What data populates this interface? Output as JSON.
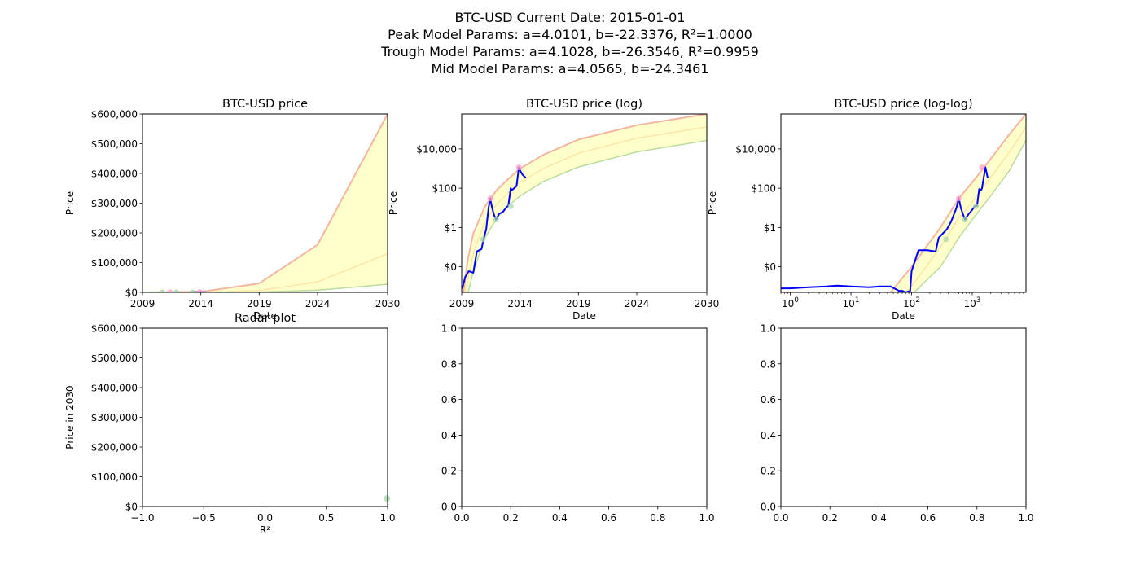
{
  "figure": {
    "suptitle": [
      "BTC-USD Current Date: 2015-01-01",
      "Peak Model Params: a=4.0101, b=-22.3376, R²=1.0000",
      "Trough Model Params: a=4.1028, b=-26.3546, R²=0.9959",
      "Mid Model Params: a=4.0565, b=-24.3461"
    ]
  },
  "colors": {
    "price_line": "#0000ff",
    "band_fill": "#ffffcc",
    "peak_line": "#f4b6a0",
    "trough_line": "#b9dd9b",
    "mid_line": "#fbe6a8",
    "peak_marker": "#ff9ec8",
    "trough_marker": "#a8d8a8"
  },
  "chart_data": [
    {
      "type": "line",
      "title": "BTC-USD price",
      "xlabel": "Date",
      "ylabel": "Price",
      "xscale": "linear",
      "yscale": "linear",
      "xlim": [
        2009,
        2030
      ],
      "ylim": [
        0,
        600000
      ],
      "xticks": [
        2009,
        2014,
        2019,
        2024,
        2030
      ],
      "xticklabels": [
        "2009",
        "2014",
        "2019",
        "2024",
        "2030"
      ],
      "yticks": [
        0,
        100000,
        200000,
        300000,
        400000,
        500000,
        600000
      ],
      "yticklabels": [
        "$0",
        "$100,000",
        "$200,000",
        "$300,000",
        "$400,000",
        "$500,000",
        "$600,000"
      ],
      "series": [
        {
          "role": "price",
          "x": [
            2009.0,
            2010.5,
            2011.4,
            2012.0,
            2013.0,
            2013.9,
            2014.5
          ],
          "y": [
            0,
            0.07,
            30,
            5,
            13,
            1150,
            330
          ]
        },
        {
          "role": "peak",
          "x": [
            2009,
            2014,
            2019,
            2024,
            2030
          ],
          "y": [
            0,
            2000,
            30000,
            160000,
            600000
          ]
        },
        {
          "role": "mid",
          "x": [
            2009,
            2014,
            2019,
            2024,
            2030
          ],
          "y": [
            0,
            400,
            6000,
            35000,
            130000
          ]
        },
        {
          "role": "trough",
          "x": [
            2009,
            2014,
            2019,
            2024,
            2030
          ],
          "y": [
            0,
            80,
            1200,
            7000,
            27000
          ]
        }
      ],
      "peaks": [
        {
          "x": 2011.4,
          "y": 30
        },
        {
          "x": 2013.9,
          "y": 1150
        }
      ],
      "troughs": [
        {
          "x": 2010.7,
          "y": 0.3
        },
        {
          "x": 2011.9,
          "y": 2.5
        },
        {
          "x": 2013.3,
          "y": 13
        }
      ]
    },
    {
      "type": "line",
      "title": "BTC-USD price (log)",
      "xlabel": "Date",
      "ylabel": "Price",
      "xscale": "linear",
      "yscale": "log",
      "xlim": [
        2009,
        2030
      ],
      "ylim": [
        0.0005,
        600000
      ],
      "xticks": [
        2009,
        2014,
        2019,
        2024,
        2030
      ],
      "xticklabels": [
        "2009",
        "2014",
        "2019",
        "2024",
        "2030"
      ],
      "yticks": [
        0.01,
        1,
        100,
        10000
      ],
      "yticklabels": [
        "$0",
        "$1",
        "$100",
        "$10,000"
      ],
      "series": [
        {
          "role": "price",
          "x": [
            2009.0,
            2009.1,
            2009.3,
            2009.6,
            2010.0,
            2010.3,
            2010.5,
            2010.7,
            2010.9,
            2011.1,
            2011.3,
            2011.45,
            2011.6,
            2011.8,
            2011.95,
            2012.2,
            2012.5,
            2012.8,
            2013.0,
            2013.2,
            2013.3,
            2013.5,
            2013.7,
            2013.9,
            2014.0,
            2014.2,
            2014.5
          ],
          "y": [
            0.0008,
            0.001,
            0.003,
            0.006,
            0.005,
            0.06,
            0.07,
            0.08,
            0.3,
            0.8,
            10,
            30,
            10,
            4,
            2.5,
            5,
            6,
            10,
            13,
            100,
            80,
            100,
            130,
            1150,
            800,
            500,
            330
          ]
        },
        {
          "role": "peak",
          "x": [
            2009.15,
            2009.5,
            2010,
            2011,
            2012,
            2013,
            2014,
            2016,
            2019,
            2024,
            2030
          ],
          "y": [
            0.0005,
            0.02,
            0.5,
            12,
            80,
            300,
            1000,
            5000,
            30000,
            160000,
            600000
          ]
        },
        {
          "role": "mid",
          "x": [
            2009.3,
            2010,
            2011,
            2012,
            2013,
            2014,
            2016,
            2019,
            2024,
            2030
          ],
          "y": [
            0.0005,
            0.05,
            2,
            15,
            60,
            200,
            1000,
            6000,
            35000,
            130000
          ]
        },
        {
          "role": "trough",
          "x": [
            2009.55,
            2010,
            2011,
            2012,
            2013,
            2014,
            2016,
            2019,
            2024,
            2030
          ],
          "y": [
            0.0005,
            0.006,
            0.3,
            3,
            13,
            40,
            220,
            1200,
            7000,
            27000
          ]
        }
      ],
      "peaks": [
        {
          "x": 2011.45,
          "y": 30
        },
        {
          "x": 2013.9,
          "y": 1150
        }
      ],
      "troughs": [
        {
          "x": 2010.8,
          "y": 0.25
        },
        {
          "x": 2011.95,
          "y": 2.5
        },
        {
          "x": 2013.2,
          "y": 12
        }
      ]
    },
    {
      "type": "line",
      "title": "BTC-USD price (log-log)",
      "xlabel": "Date",
      "ylabel": "Price",
      "xscale": "log",
      "yscale": "log",
      "xlim": [
        0.7,
        7700
      ],
      "ylim": [
        0.0005,
        600000
      ],
      "xticks": [
        1,
        10,
        100,
        1000
      ],
      "xticklabels": [
        [
          "10",
          "0"
        ],
        [
          "10",
          "1"
        ],
        [
          "10",
          "2"
        ],
        [
          "10",
          "3"
        ]
      ],
      "yticks": [
        0.01,
        1,
        100,
        10000
      ],
      "yticklabels": [
        "$0",
        "$1",
        "$100",
        "$10,000"
      ],
      "series": [
        {
          "role": "price",
          "x": [
            0.7,
            1.0,
            2.0,
            4.0,
            6.0,
            10,
            20,
            30,
            45,
            62,
            70,
            80,
            95,
            100,
            130,
            180,
            250,
            280,
            380,
            450,
            550,
            600,
            650,
            700,
            760,
            880,
            1000,
            1100,
            1200,
            1300,
            1400,
            1450,
            1500,
            1650,
            1800
          ],
          "y": [
            0.0008,
            0.0008,
            0.0009,
            0.001,
            0.0011,
            0.001,
            0.0009,
            0.001,
            0.001,
            0.0006,
            0.0006,
            0.0005,
            0.0006,
            0.006,
            0.07,
            0.07,
            0.06,
            0.3,
            0.8,
            2,
            10,
            30,
            10,
            5,
            2.5,
            5,
            8,
            12,
            13,
            90,
            80,
            100,
            200,
            1150,
            330
          ]
        },
        {
          "role": "peak",
          "x": [
            45,
            100,
            300,
            600,
            1000,
            2000,
            4000,
            7700
          ],
          "y": [
            0.0005,
            0.01,
            1,
            30,
            200,
            3000,
            50000,
            600000
          ]
        },
        {
          "role": "mid",
          "x": [
            80,
            100,
            300,
            600,
            1000,
            2000,
            4000,
            7700
          ],
          "y": [
            0.0005,
            0.001,
            0.1,
            3,
            20,
            350,
            6000,
            130000
          ]
        },
        {
          "role": "trough",
          "x": [
            110,
            300,
            600,
            1000,
            2000,
            4000,
            7700
          ],
          "y": [
            0.0005,
            0.01,
            0.3,
            2.5,
            40,
            700,
            27000
          ]
        }
      ],
      "peaks": [
        {
          "x": 600,
          "y": 30
        },
        {
          "x": 1450,
          "y": 1150
        }
      ],
      "troughs": [
        {
          "x": 370,
          "y": 0.25
        },
        {
          "x": 760,
          "y": 2.5
        },
        {
          "x": 1150,
          "y": 12
        }
      ]
    },
    {
      "type": "scatter",
      "title": "Radar plot",
      "xlabel": "R²",
      "ylabel": "Price in 2030",
      "xscale": "linear",
      "yscale": "linear",
      "xlim": [
        -1,
        1
      ],
      "ylim": [
        0,
        600000
      ],
      "xticks": [
        -1,
        -0.5,
        0,
        0.5,
        1
      ],
      "xticklabels": [
        "−1.0",
        "−0.5",
        "0.0",
        "0.5",
        "1.0"
      ],
      "yticks": [
        0,
        100000,
        200000,
        300000,
        400000,
        500000,
        600000
      ],
      "yticklabels": [
        "$0",
        "$100,000",
        "$200,000",
        "$300,000",
        "$400,000",
        "$500,000",
        "$600,000"
      ],
      "points": [
        {
          "x": 0.9959,
          "y": 27000
        }
      ]
    },
    {
      "type": "empty",
      "title": "",
      "xlim": [
        0,
        1
      ],
      "ylim": [
        0,
        1
      ],
      "xticks": [
        0,
        0.2,
        0.4,
        0.6,
        0.8,
        1
      ],
      "xticklabels": [
        "0.0",
        "0.2",
        "0.4",
        "0.6",
        "0.8",
        "1.0"
      ],
      "yticks": [
        0,
        0.2,
        0.4,
        0.6,
        0.8,
        1
      ],
      "yticklabels": [
        "0.0",
        "0.2",
        "0.4",
        "0.6",
        "0.8",
        "1.0"
      ]
    },
    {
      "type": "empty",
      "title": "",
      "xlim": [
        0,
        1
      ],
      "ylim": [
        0,
        1
      ],
      "xticks": [
        0,
        0.2,
        0.4,
        0.6,
        0.8,
        1
      ],
      "xticklabels": [
        "0.0",
        "0.2",
        "0.4",
        "0.6",
        "0.8",
        "1.0"
      ],
      "yticks": [
        0,
        0.2,
        0.4,
        0.6,
        0.8,
        1
      ],
      "yticklabels": [
        "0.0",
        "0.2",
        "0.4",
        "0.6",
        "0.8",
        "1.0"
      ]
    }
  ]
}
